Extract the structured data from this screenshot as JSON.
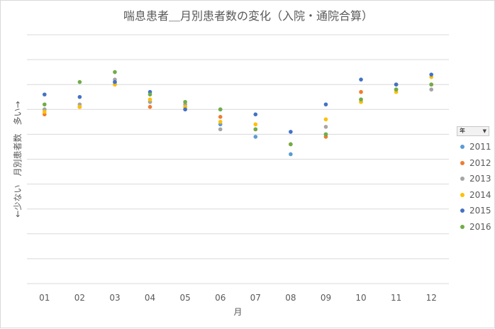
{
  "chart_data": {
    "type": "scatter",
    "title": "喘息患者＿月別患者数の変化（入院・通院合算）",
    "xlabel": "月",
    "ylabel": "←少ない　月別患者数　多い→",
    "categories": [
      "01",
      "02",
      "03",
      "04",
      "05",
      "06",
      "07",
      "08",
      "09",
      "10",
      "11",
      "12"
    ],
    "ylim": [
      0,
      10
    ],
    "grid": true,
    "legend_position": "right",
    "legend_filter_label": "年",
    "series": [
      {
        "name": "2011",
        "color": "#5b9bd5",
        "values": [
          7.0,
          7.1,
          8.1,
          7.3,
          7.0,
          6.4,
          5.9,
          5.2,
          6.0,
          7.3,
          7.8,
          8.0
        ]
      },
      {
        "name": "2012",
        "color": "#ed7d31",
        "values": [
          6.8,
          7.1,
          8.0,
          7.1,
          7.1,
          6.7,
          6.2,
          5.6,
          5.9,
          7.7,
          8.0,
          8.0
        ]
      },
      {
        "name": "2013",
        "color": "#a5a5a5",
        "values": [
          7.0,
          7.2,
          8.2,
          7.3,
          7.2,
          6.2,
          6.2,
          5.6,
          6.3,
          7.4,
          8.0,
          7.8
        ]
      },
      {
        "name": "2014",
        "color": "#ffc000",
        "values": [
          6.9,
          7.1,
          8.0,
          7.4,
          7.1,
          6.5,
          6.4,
          5.6,
          6.6,
          7.3,
          7.7,
          8.3
        ]
      },
      {
        "name": "2015",
        "color": "#4472c4",
        "values": [
          7.6,
          7.5,
          8.1,
          7.7,
          7.0,
          7.0,
          6.8,
          6.1,
          7.2,
          8.2,
          8.0,
          8.4
        ]
      },
      {
        "name": "2016",
        "color": "#70ad47",
        "values": [
          7.2,
          8.1,
          8.5,
          7.6,
          7.3,
          7.0,
          6.2,
          5.6,
          6.0,
          7.4,
          7.8,
          8.0
        ]
      }
    ]
  }
}
